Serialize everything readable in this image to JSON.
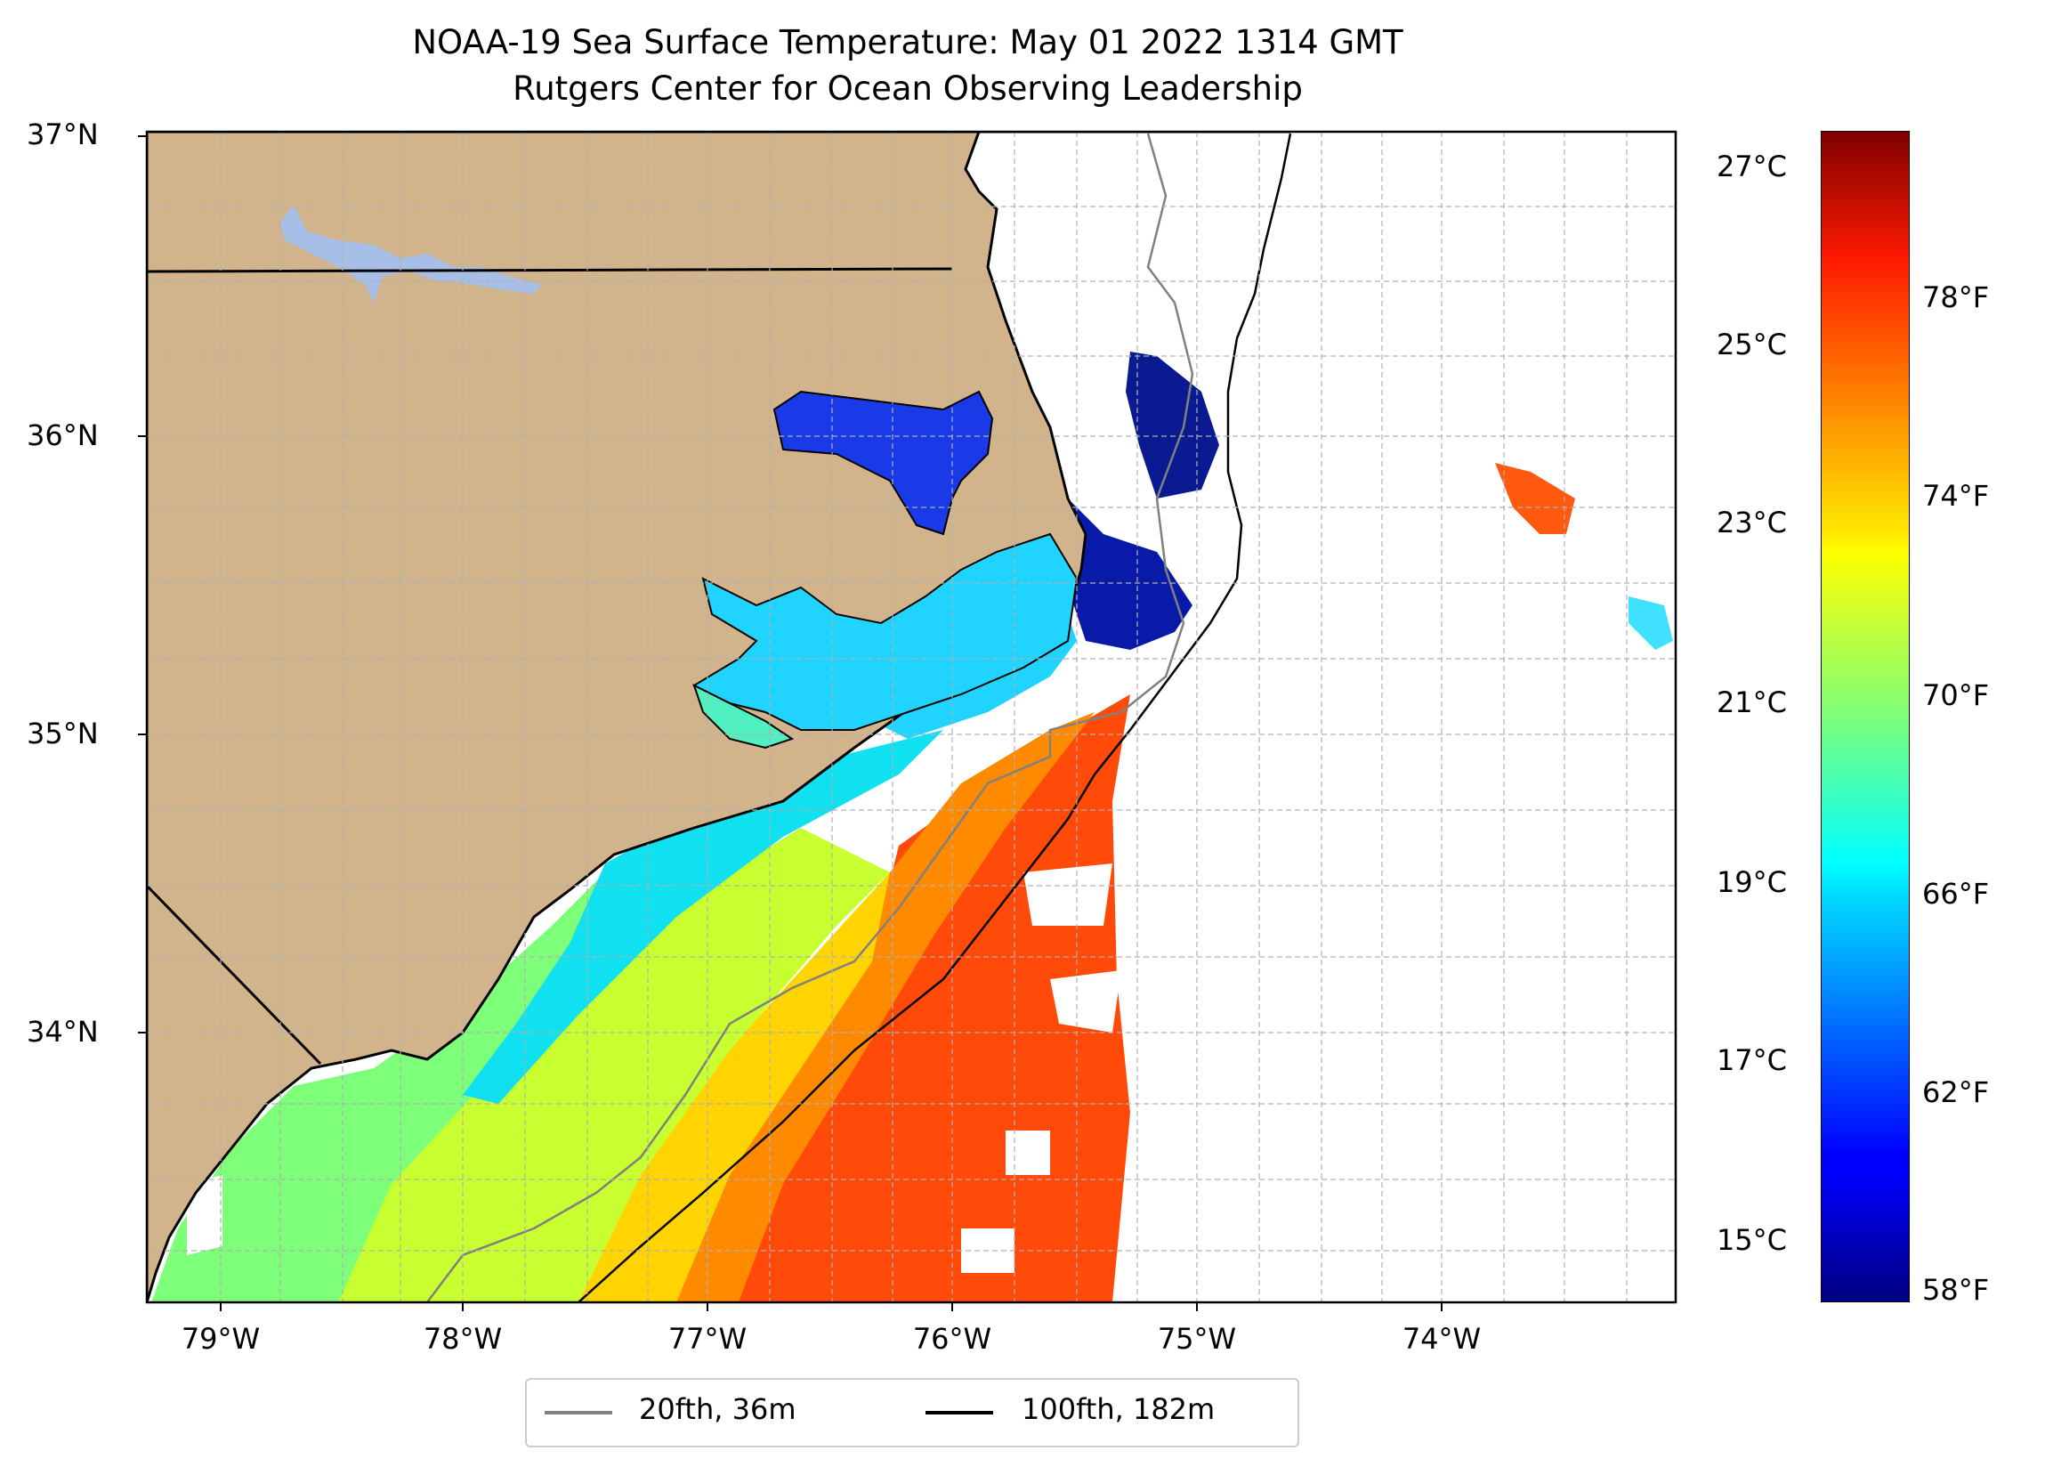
{
  "title": {
    "line1": "NOAA-19 Sea Surface Temperature: May 01 2022 1314 GMT",
    "line2": "Rutgers Center for Ocean Observing Leadership"
  },
  "map": {
    "land_color": "#d2b48c",
    "lake_color": "#a7bfe6",
    "lat_labels": [
      "37°N",
      "36°N",
      "35°N",
      "34°N"
    ],
    "lon_labels": [
      "79°W",
      "78°W",
      "77°W",
      "76°W",
      "75°W",
      "74°W"
    ]
  },
  "colorbar": {
    "colormap": "jet",
    "celsius_labels": [
      "27°C",
      "25°C",
      "23°C",
      "21°C",
      "19°C",
      "17°C",
      "15°C"
    ],
    "fahrenheit_labels": [
      "78°F",
      "74°F",
      "70°F",
      "66°F",
      "62°F",
      "58°F"
    ]
  },
  "legend": {
    "items": [
      {
        "label": "20fth, 36m",
        "color": "#808080"
      },
      {
        "label": "100fth, 182m",
        "color": "#000000"
      }
    ]
  }
}
